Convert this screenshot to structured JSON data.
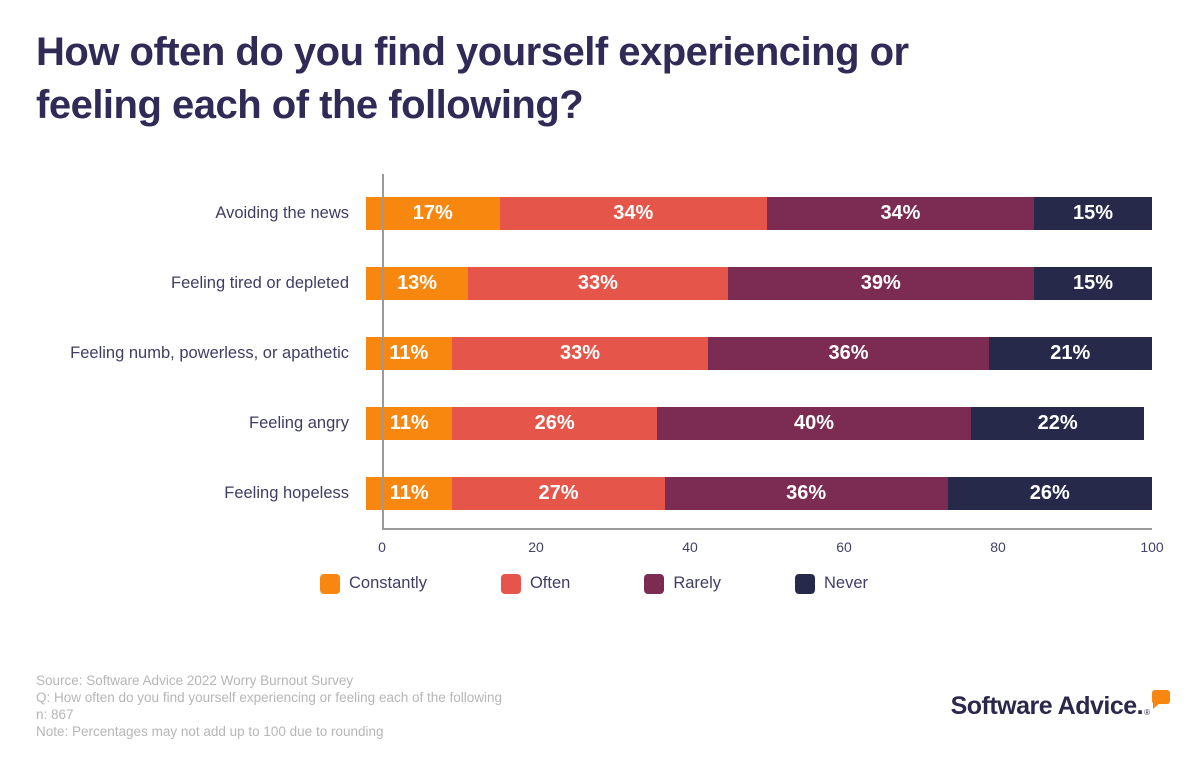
{
  "header": {
    "title_lines": [
      "How often do you find yourself experiencing or",
      "feeling each of the following?"
    ]
  },
  "chart_data": {
    "type": "bar",
    "orientation": "horizontal",
    "stacked": true,
    "title": "How often do you find yourself experiencing or feeling each of the following?",
    "categories": [
      "Avoiding the news",
      "Feeling tired or depleted",
      "Feeling numb, powerless, or apathetic",
      "Feeling angry",
      "Feeling hopeless"
    ],
    "series": [
      {
        "name": "Constantly",
        "color": "#F8870F",
        "values": [
          17,
          13,
          11,
          11,
          11
        ]
      },
      {
        "name": "Often",
        "color": "#E6554A",
        "values": [
          34,
          33,
          33,
          26,
          27
        ]
      },
      {
        "name": "Rarely",
        "color": "#7C2B53",
        "values": [
          34,
          39,
          36,
          40,
          36
        ]
      },
      {
        "name": "Never",
        "color": "#26294A",
        "values": [
          15,
          15,
          21,
          22,
          26
        ]
      }
    ],
    "value_suffix": "%",
    "xlabel": "",
    "ylabel": "",
    "xlim": [
      0,
      100
    ],
    "x_ticks": [
      0,
      20,
      40,
      60,
      80,
      100
    ],
    "grid": false,
    "legend_position": "bottom"
  },
  "footer": {
    "lines": [
      "Source: Software Advice 2022 Worry Burnout Survey",
      "Q: How often do you find yourself experiencing or feeling each of the following",
      "n: 867",
      "Note: Percentages may not add up to 100 due to rounding"
    ]
  },
  "branding": {
    "logo_text": "Software Advice.",
    "registered_mark": "®"
  }
}
